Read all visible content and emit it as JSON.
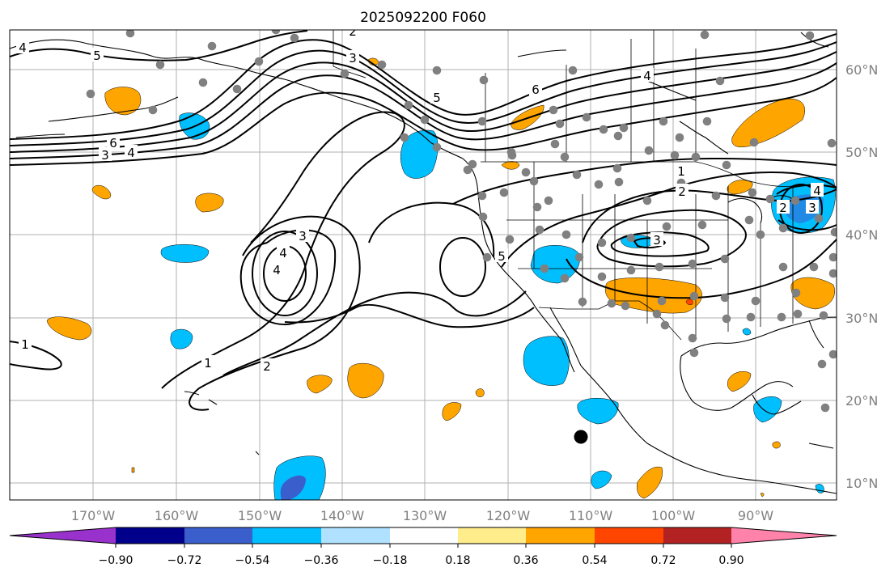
{
  "figure": {
    "title": "2025092200 F060"
  },
  "axes": {
    "lon_ticks": [
      "170°W",
      "160°W",
      "150°W",
      "140°W",
      "130°W",
      "120°W",
      "110°W",
      "100°W",
      "90°W"
    ],
    "lat_ticks": [
      "10°N",
      "20°N",
      "30°N",
      "40°N",
      "50°N",
      "60°N"
    ],
    "grid": true
  },
  "contour_labels": [
    "5",
    "4",
    "2",
    "3",
    "5",
    "6",
    "6",
    "3",
    "4",
    "4",
    "1",
    "2",
    "3",
    "4",
    "3",
    "4",
    "5",
    "1",
    "2",
    "1",
    "2",
    "3",
    "4"
  ],
  "colorbar": {
    "tick_labels": [
      "−0.90",
      "−0.72",
      "−0.54",
      "−0.36",
      "−0.18",
      "0.18",
      "0.36",
      "0.54",
      "0.72",
      "0.90"
    ],
    "colors": [
      "#9932CC",
      "#00008B",
      "#3A5FCD",
      "#00BFFF",
      "#B0E2FF",
      "#FFFFFF",
      "#FFEC8B",
      "#FFA500",
      "#FF4500",
      "#B22222",
      "#FF82AB"
    ]
  },
  "colors": {
    "land_outline": "#000000",
    "grid": "#b0b0b0",
    "station_dot": "#808080",
    "contour": "#000000"
  }
}
